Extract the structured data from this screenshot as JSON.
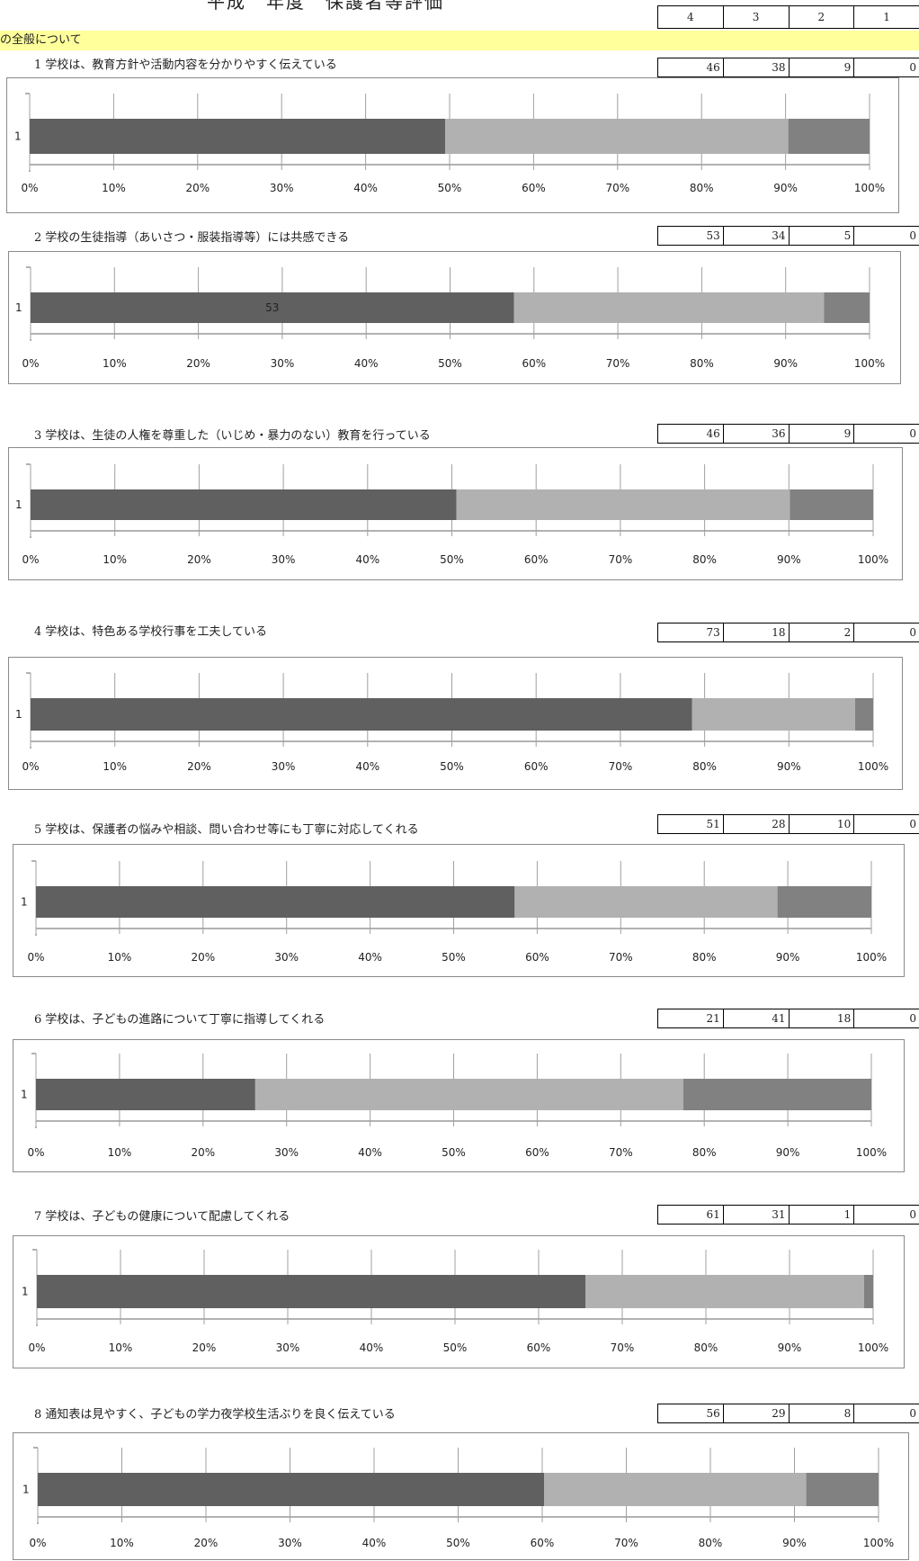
{
  "header": {
    "title": "平成　年度　保護者等評価",
    "levels": [
      "4",
      "3",
      "2",
      "1"
    ]
  },
  "section": {
    "label": "の全般について"
  },
  "colors": {
    "level4": "#606060",
    "level3": "#b1b1b1",
    "level2": "#818181",
    "level1": "#d5d5d5",
    "banner": "#ffff9b"
  },
  "questions": [
    {
      "title": "1 学校は、教育方針や活動内容を分かりやすく伝えている",
      "counts": [
        "46",
        "38",
        "9",
        "0"
      ]
    },
    {
      "title": "2 学校の生徒指導（あいさつ・服装指導等）には共感できる",
      "counts": [
        "53",
        "34",
        "5",
        "0"
      ]
    },
    {
      "title": "3 学校は、生徒の人権を尊重した（いじめ・暴力のない）教育を行っている",
      "counts": [
        "46",
        "36",
        "9",
        "0"
      ]
    },
    {
      "title": "4 学校は、特色ある学校行事を工夫している",
      "counts": [
        "73",
        "18",
        "2",
        "0"
      ]
    },
    {
      "title": "5 学校は、保護者の悩みや相談、問い合わせ等にも丁寧に対応してくれる",
      "counts": [
        "51",
        "28",
        "10",
        "0"
      ]
    },
    {
      "title": "6 学校は、子どもの進路について丁寧に指導してくれる",
      "counts": [
        "21",
        "41",
        "18",
        "0"
      ]
    },
    {
      "title": "7 学校は、子どもの健康について配慮してくれる",
      "counts": [
        "61",
        "31",
        "1",
        "0"
      ]
    },
    {
      "title": "8 通知表は見やすく、子どもの学力夜学校生活ぶりを良く伝えている",
      "counts": [
        "56",
        "29",
        "8",
        "0"
      ]
    }
  ],
  "chart_data": [
    {
      "type": "bar",
      "orientation": "horizontal",
      "stacked": "percent",
      "categories": [
        "1"
      ],
      "series": [
        {
          "values": [
            46
          ]
        },
        {
          "values": [
            38
          ]
        },
        {
          "values": [
            9
          ]
        },
        {
          "values": [
            0
          ]
        }
      ],
      "xlim": [
        0,
        100
      ],
      "ticks": [
        "0%",
        "10%",
        "20%",
        "30%",
        "40%",
        "50%",
        "60%",
        "70%",
        "80%",
        "90%",
        "100%"
      ],
      "data_labels": []
    },
    {
      "type": "bar",
      "orientation": "horizontal",
      "stacked": "percent",
      "categories": [
        "1"
      ],
      "series": [
        {
          "values": [
            53
          ]
        },
        {
          "values": [
            34
          ]
        },
        {
          "values": [
            5
          ]
        },
        {
          "values": [
            0
          ]
        }
      ],
      "xlim": [
        0,
        100
      ],
      "ticks": [
        "0%",
        "10%",
        "20%",
        "30%",
        "40%",
        "50%",
        "60%",
        "70%",
        "80%",
        "90%",
        "100%"
      ],
      "data_labels": [
        "53"
      ]
    },
    {
      "type": "bar",
      "orientation": "horizontal",
      "stacked": "percent",
      "categories": [
        "1"
      ],
      "series": [
        {
          "values": [
            46
          ]
        },
        {
          "values": [
            36
          ]
        },
        {
          "values": [
            9
          ]
        },
        {
          "values": [
            0
          ]
        }
      ],
      "xlim": [
        0,
        100
      ],
      "ticks": [
        "0%",
        "10%",
        "20%",
        "30%",
        "40%",
        "50%",
        "60%",
        "70%",
        "80%",
        "90%",
        "100%"
      ],
      "data_labels": []
    },
    {
      "type": "bar",
      "orientation": "horizontal",
      "stacked": "percent",
      "categories": [
        "1"
      ],
      "series": [
        {
          "values": [
            73
          ]
        },
        {
          "values": [
            18
          ]
        },
        {
          "values": [
            2
          ]
        },
        {
          "values": [
            0
          ]
        }
      ],
      "xlim": [
        0,
        100
      ],
      "ticks": [
        "0%",
        "10%",
        "20%",
        "30%",
        "40%",
        "50%",
        "60%",
        "70%",
        "80%",
        "90%",
        "100%"
      ],
      "data_labels": []
    },
    {
      "type": "bar",
      "orientation": "horizontal",
      "stacked": "percent",
      "categories": [
        "1"
      ],
      "series": [
        {
          "values": [
            51
          ]
        },
        {
          "values": [
            28
          ]
        },
        {
          "values": [
            10
          ]
        },
        {
          "values": [
            0
          ]
        }
      ],
      "xlim": [
        0,
        100
      ],
      "ticks": [
        "0%",
        "10%",
        "20%",
        "30%",
        "40%",
        "50%",
        "60%",
        "70%",
        "80%",
        "90%",
        "100%"
      ],
      "data_labels": []
    },
    {
      "type": "bar",
      "orientation": "horizontal",
      "stacked": "percent",
      "categories": [
        "1"
      ],
      "series": [
        {
          "values": [
            21
          ]
        },
        {
          "values": [
            41
          ]
        },
        {
          "values": [
            18
          ]
        },
        {
          "values": [
            0
          ]
        }
      ],
      "xlim": [
        0,
        100
      ],
      "ticks": [
        "0%",
        "10%",
        "20%",
        "30%",
        "40%",
        "50%",
        "60%",
        "70%",
        "80%",
        "90%",
        "100%"
      ],
      "data_labels": []
    },
    {
      "type": "bar",
      "orientation": "horizontal",
      "stacked": "percent",
      "categories": [
        "1"
      ],
      "series": [
        {
          "values": [
            61
          ]
        },
        {
          "values": [
            31
          ]
        },
        {
          "values": [
            1
          ]
        },
        {
          "values": [
            0
          ]
        }
      ],
      "xlim": [
        0,
        100
      ],
      "ticks": [
        "0%",
        "10%",
        "20%",
        "30%",
        "40%",
        "50%",
        "60%",
        "70%",
        "80%",
        "90%",
        "100%"
      ],
      "data_labels": []
    },
    {
      "type": "bar",
      "orientation": "horizontal",
      "stacked": "percent",
      "categories": [
        "1"
      ],
      "series": [
        {
          "values": [
            56
          ]
        },
        {
          "values": [
            29
          ]
        },
        {
          "values": [
            8
          ]
        },
        {
          "values": [
            0
          ]
        }
      ],
      "xlim": [
        0,
        100
      ],
      "ticks": [
        "0%",
        "10%",
        "20%",
        "30%",
        "40%",
        "50%",
        "60%",
        "70%",
        "80%",
        "90%",
        "100%"
      ],
      "data_labels": []
    }
  ]
}
